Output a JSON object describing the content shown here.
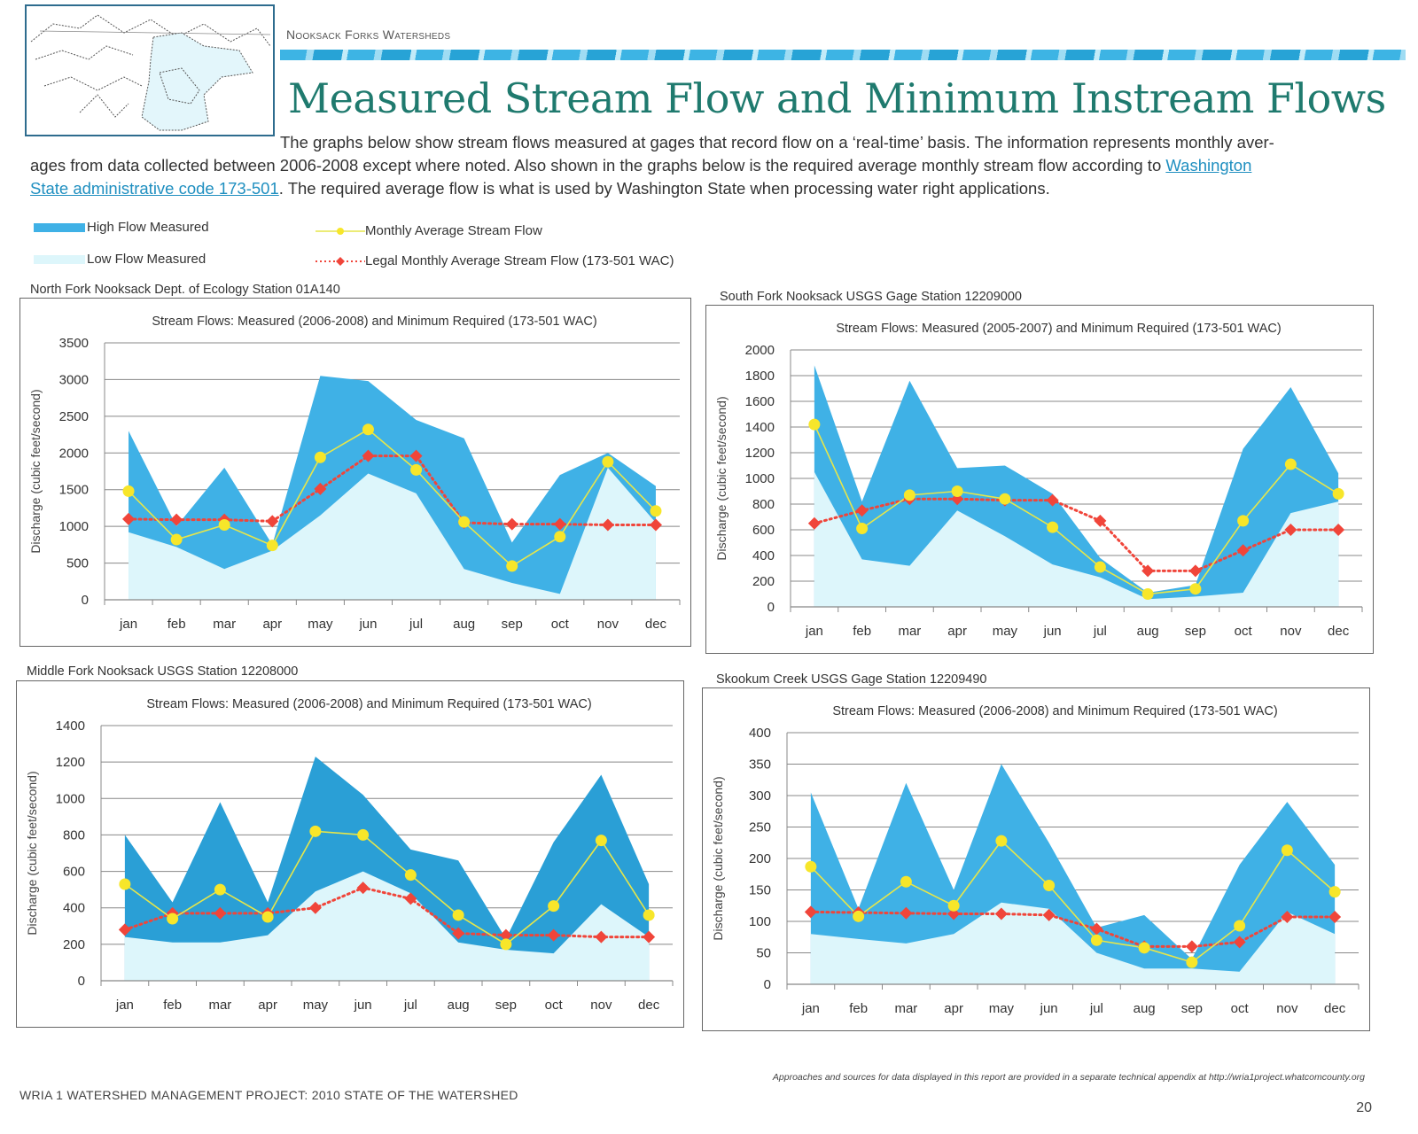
{
  "header": {
    "section": "Nooksack Forks Watersheds",
    "title": "Measured Stream Flow and Minimum Instream Flows"
  },
  "intro": {
    "line1": "The graphs below show stream flows measured at gages that record flow on a ‘real-time’ basis.  The information represents monthly aver-",
    "line2": "ages from data collected between 2006-2008 except where noted.  Also shown in the graphs below is the required average monthly stream flow according to ",
    "link_a": "Washington",
    "link_b": "State administrative code 173-501",
    "line3": ".  The required average flow is what is used by Washington State when processing water right applications."
  },
  "legend": {
    "high": "High Flow Measured",
    "low": "Low Flow Measured",
    "avg": "Monthly Average Stream Flow",
    "legal": "Legal Monthly Average Stream Flow (173-501 WAC)"
  },
  "colors": {
    "high": "#3fb1e6",
    "high_dark": "#2a9fd6",
    "low": "#ddf6fb",
    "avg_line": "#e6e64a",
    "avg_marker": "#f7e62a",
    "legal": "#f0453a",
    "grid": "#888888",
    "title_teal": "#1f7a6e",
    "link": "#1f8fc0"
  },
  "chart_data": [
    {
      "type": "area",
      "caption": "North Fork Nooksack Dept. of Ecology Station 01A140",
      "title": "Stream Flows: Measured (2006-2008) and Minimum Required (173-501 WAC)",
      "ylabel": "Discharge (cubic feet/second)",
      "xlabel": "",
      "categories": [
        "jan",
        "feb",
        "mar",
        "apr",
        "may",
        "jun",
        "jul",
        "aug",
        "sep",
        "oct",
        "nov",
        "dec"
      ],
      "ylim": [
        0,
        3500
      ],
      "yticks": [
        0,
        500,
        1000,
        1500,
        2000,
        2500,
        3000,
        3500
      ],
      "grid": true,
      "series": [
        {
          "name": "High Flow Measured",
          "values": [
            2300,
            1000,
            1800,
            750,
            3050,
            2980,
            2450,
            2200,
            780,
            1700,
            2000,
            1550
          ]
        },
        {
          "name": "Low Flow Measured",
          "values": [
            920,
            720,
            420,
            670,
            1150,
            1720,
            1450,
            420,
            230,
            80,
            1800,
            1050
          ]
        },
        {
          "name": "Monthly Average Stream Flow",
          "values": [
            1480,
            820,
            1020,
            740,
            1940,
            2320,
            1770,
            1060,
            460,
            860,
            1880,
            1210
          ]
        },
        {
          "name": "Legal Monthly Average Stream Flow (173-501 WAC)",
          "values": [
            1100,
            1090,
            1090,
            1070,
            1510,
            1960,
            1960,
            1050,
            1030,
            1030,
            1020,
            1020
          ]
        }
      ]
    },
    {
      "type": "area",
      "caption": "South Fork Nooksack USGS Gage Station 12209000",
      "title": "Stream Flows: Measured (2005-2007) and Minimum Required (173-501 WAC)",
      "ylabel": "Discharge (cubic feet/second)",
      "xlabel": "",
      "categories": [
        "jan",
        "feb",
        "mar",
        "apr",
        "may",
        "jun",
        "jul",
        "aug",
        "sep",
        "oct",
        "nov",
        "dec"
      ],
      "ylim": [
        0,
        2000
      ],
      "yticks": [
        0,
        200,
        400,
        600,
        800,
        1000,
        1200,
        1400,
        1600,
        1800,
        2000
      ],
      "grid": true,
      "series": [
        {
          "name": "High Flow Measured",
          "values": [
            1880,
            820,
            1760,
            1080,
            1100,
            880,
            380,
            110,
            170,
            1230,
            1710,
            1040
          ]
        },
        {
          "name": "Low Flow Measured",
          "values": [
            1050,
            370,
            320,
            750,
            550,
            330,
            230,
            60,
            80,
            110,
            730,
            820
          ]
        },
        {
          "name": "Monthly Average Stream Flow",
          "values": [
            1420,
            610,
            870,
            900,
            840,
            620,
            310,
            100,
            140,
            670,
            1110,
            880
          ]
        },
        {
          "name": "Legal Monthly Average Stream Flow (173-501 WAC)",
          "values": [
            650,
            750,
            840,
            840,
            830,
            830,
            670,
            280,
            280,
            440,
            600,
            600
          ]
        }
      ]
    },
    {
      "type": "area",
      "caption": "Middle Fork Nooksack USGS Station 12208000",
      "title": "Stream Flows: Measured (2006-2008) and Minimum Required (173-501 WAC)",
      "ylabel": "Discharge (cubic feet/second)",
      "xlabel": "",
      "categories": [
        "jan",
        "feb",
        "mar",
        "apr",
        "may",
        "jun",
        "jul",
        "aug",
        "sep",
        "oct",
        "nov",
        "dec"
      ],
      "ylim": [
        0,
        1400
      ],
      "yticks": [
        0,
        200,
        400,
        600,
        800,
        1000,
        1200,
        1400
      ],
      "grid": true,
      "series": [
        {
          "name": "High Flow Measured",
          "values": [
            800,
            430,
            980,
            430,
            1230,
            1020,
            720,
            660,
            230,
            760,
            1130,
            530
          ]
        },
        {
          "name": "Low Flow Measured",
          "values": [
            240,
            210,
            210,
            250,
            490,
            600,
            480,
            210,
            170,
            150,
            420,
            240
          ]
        },
        {
          "name": "Monthly Average Stream Flow",
          "values": [
            530,
            340,
            500,
            350,
            820,
            800,
            580,
            360,
            200,
            410,
            770,
            360
          ]
        },
        {
          "name": "Legal Monthly Average Stream Flow (173-501 WAC)",
          "values": [
            280,
            370,
            370,
            370,
            400,
            510,
            450,
            260,
            250,
            250,
            240,
            240
          ]
        }
      ]
    },
    {
      "type": "area",
      "caption": "Skookum Creek USGS Gage Station  12209490",
      "title": "Stream Flows: Measured (2006-2008) and Minimum Required (173-501 WAC)",
      "ylabel": "Discharge (cubic feet/second)",
      "xlabel": "",
      "categories": [
        "jan",
        "feb",
        "mar",
        "apr",
        "may",
        "jun",
        "jul",
        "aug",
        "sep",
        "oct",
        "nov",
        "dec"
      ],
      "ylim": [
        0,
        400
      ],
      "yticks": [
        0,
        50,
        100,
        150,
        200,
        250,
        300,
        350,
        400
      ],
      "grid": true,
      "series": [
        {
          "name": "High Flow Measured",
          "values": [
            305,
            120,
            320,
            150,
            350,
            225,
            90,
            110,
            40,
            190,
            290,
            190
          ]
        },
        {
          "name": "Low Flow Measured",
          "values": [
            80,
            72,
            65,
            80,
            130,
            120,
            50,
            25,
            25,
            20,
            115,
            80
          ]
        },
        {
          "name": "Monthly Average Stream Flow",
          "values": [
            187,
            108,
            163,
            125,
            228,
            157,
            70,
            58,
            35,
            93,
            213,
            147
          ]
        },
        {
          "name": "Legal Monthly Average Stream Flow (173-501 WAC)",
          "values": [
            115,
            114,
            113,
            112,
            112,
            110,
            88,
            60,
            60,
            67,
            107,
            107
          ]
        }
      ]
    }
  ],
  "footer": {
    "left": "WRIA 1 WATERSHED MANAGEMENT PROJECT: 2010 STATE OF THE WATERSHED",
    "note": "Approaches and sources for data displayed in this report are provided in a separate technical appendix at http://wria1project.whatcomcounty.org",
    "page": "20"
  }
}
